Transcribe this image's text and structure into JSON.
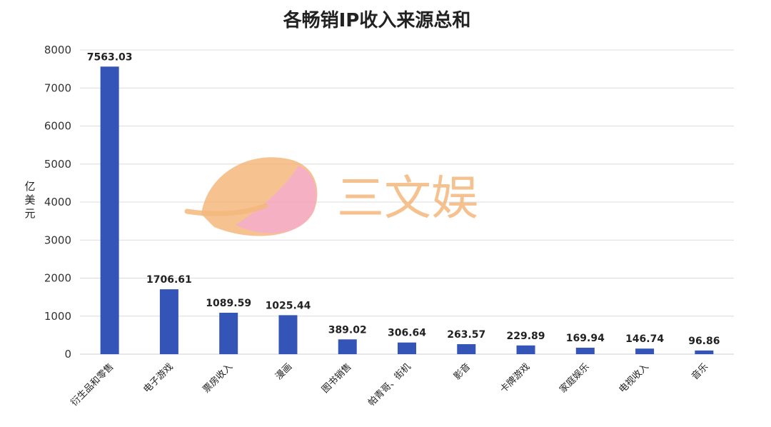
{
  "chart_data": {
    "type": "bar",
    "title": "各畅销IP收入来源总和",
    "ylabel": "亿美元",
    "xlabel": "",
    "ylim": [
      0,
      8000
    ],
    "yticks": [
      0,
      1000,
      2000,
      3000,
      4000,
      5000,
      6000,
      7000,
      8000
    ],
    "grid": true,
    "bar_color": "#3554b8",
    "categories": [
      "衍生品和零售",
      "电子游戏",
      "票房收入",
      "漫画",
      "图书销售",
      "帕青哥、街机",
      "影音",
      "卡牌游戏",
      "家庭娱乐",
      "电视收入",
      "音乐"
    ],
    "values": [
      7563.03,
      1706.61,
      1089.59,
      1025.44,
      389.02,
      306.64,
      263.57,
      229.89,
      169.94,
      146.74,
      96.86
    ],
    "value_labels": [
      "7563.03",
      "1706.61",
      "1089.59",
      "1025.44",
      "389.02",
      "306.64",
      "263.57",
      "229.89",
      "169.94",
      "146.74",
      "96.86"
    ]
  },
  "watermark": {
    "text": "三文娱",
    "leaf_color": "#f3b06e",
    "accent_color": "#f4a7c4"
  }
}
